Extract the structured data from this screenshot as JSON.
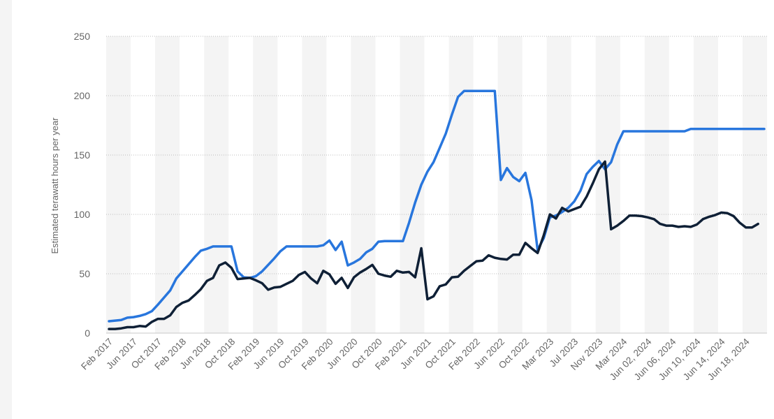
{
  "chart_data": {
    "type": "line",
    "title": "",
    "xlabel": "",
    "ylabel": "Estimated terawatt hours per year",
    "ylim": [
      0,
      250
    ],
    "yticks": [
      0,
      50,
      100,
      150,
      200,
      250
    ],
    "grid": true,
    "legend": "none",
    "x_tick_labels": [
      "Feb 2017",
      "Jun 2017",
      "Oct 2017",
      "Feb 2018",
      "Jun 2018",
      "Oct 2018",
      "Feb 2019",
      "Jun 2019",
      "Oct 2019",
      "Feb 2020",
      "Jun 2020",
      "Oct 2020",
      "Feb 2021",
      "Jun 2021",
      "Oct 2021",
      "Feb 2022",
      "Jun 2022",
      "Oct 2022",
      "Mar 2023",
      "Jul 2023",
      "Nov 2023",
      "Mar 2024",
      "Jun 02, 2024",
      "Jun 06, 2024",
      "Jun 10, 2024",
      "Jun 14, 2024",
      "Jun 18, 2024"
    ],
    "x_tick_positions": [
      0,
      4,
      8,
      12,
      16,
      20,
      24,
      28,
      32,
      36,
      40,
      44,
      48,
      52,
      56,
      60,
      64,
      68,
      72,
      76,
      80,
      84,
      88,
      92,
      96,
      100,
      104
    ],
    "n_points": 108,
    "series": [
      {
        "color": "#2876dd",
        "values": [
          10,
          10.5,
          11,
          13,
          13.5,
          14.5,
          16,
          18.5,
          24,
          30,
          36,
          46,
          52,
          58,
          64,
          69.5,
          71,
          73,
          73,
          73,
          73,
          52,
          47,
          46.5,
          48,
          52,
          57.5,
          63,
          69,
          73,
          73,
          73,
          73,
          73,
          73,
          74,
          78,
          70,
          77,
          57,
          59.5,
          62.5,
          68,
          71,
          77,
          77.5,
          77.5,
          77.5,
          77.5,
          93,
          110,
          125,
          136,
          144,
          156,
          168,
          184,
          199,
          204,
          204,
          204,
          204,
          204,
          204,
          129,
          139,
          131.5,
          128,
          135,
          112,
          70,
          80,
          97.5,
          99,
          102,
          105.5,
          111,
          120,
          134,
          140,
          145,
          138,
          144,
          159,
          170,
          170,
          170,
          170,
          170,
          170,
          170,
          170,
          170,
          170,
          170,
          172,
          172,
          172,
          172,
          172,
          172,
          172,
          172,
          172,
          172,
          172,
          172,
          172
        ]
      },
      {
        "color": "#0f2036",
        "values": [
          3.5,
          3.5,
          4,
          5,
          5,
          6,
          5.5,
          9.5,
          12,
          12,
          15,
          22,
          25.5,
          27.5,
          32,
          37,
          44,
          46.5,
          57,
          59.5,
          55,
          45.5,
          46,
          46.5,
          44.5,
          42,
          36.5,
          38.5,
          39,
          41.5,
          44,
          49,
          51.5,
          46,
          42,
          52.5,
          49.5,
          41.5,
          46.5,
          38,
          47,
          51,
          54,
          57.5,
          50,
          48.5,
          47.5,
          52.5,
          51,
          51.5,
          47,
          71.5,
          28.5,
          31,
          39.5,
          41,
          47,
          47.5,
          52.5,
          56.5,
          60.5,
          61,
          65.5,
          63.5,
          62.5,
          62,
          66,
          66,
          76,
          71.5,
          67.5,
          82.5,
          100,
          96.5,
          105.5,
          102.5,
          104.5,
          106.5,
          115,
          126,
          138,
          144.5,
          87.5,
          90.5,
          94.5,
          99,
          99,
          98.5,
          97.5,
          96,
          92,
          90.5,
          90.5,
          89.5,
          90,
          89.5,
          91.5,
          96,
          98,
          99.5,
          101.5,
          101,
          98.5,
          93,
          89,
          89,
          92
        ]
      }
    ]
  }
}
